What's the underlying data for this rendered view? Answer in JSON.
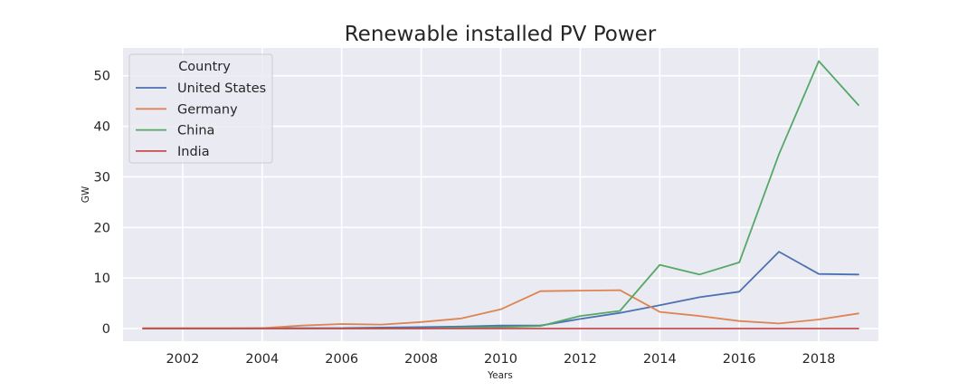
{
  "chart_data": {
    "type": "line",
    "title": "Renewable installed PV Power",
    "xlabel": "Years",
    "ylabel": "GW",
    "xlim": [
      2000.5,
      2019.5
    ],
    "ylim": [
      -2.5,
      55.5
    ],
    "xticks": [
      2002,
      2004,
      2006,
      2008,
      2010,
      2012,
      2014,
      2016,
      2018
    ],
    "yticks": [
      0,
      10,
      20,
      30,
      40,
      50
    ],
    "grid": true,
    "legend": {
      "title": "Country",
      "placement": "top-left"
    },
    "x": [
      2001,
      2002,
      2003,
      2004,
      2005,
      2006,
      2007,
      2008,
      2009,
      2010,
      2011,
      2012,
      2013,
      2014,
      2015,
      2016,
      2017,
      2018,
      2019
    ],
    "series": [
      {
        "name": "United States",
        "color": "#4c72b0",
        "values": [
          0.0,
          0.0,
          0.0,
          0.1,
          0.1,
          0.1,
          0.2,
          0.3,
          0.4,
          0.6,
          0.6,
          1.9,
          3.1,
          4.6,
          6.2,
          7.3,
          15.2,
          10.8,
          10.7
        ]
      },
      {
        "name": "Germany",
        "color": "#dd8452",
        "values": [
          0.1,
          0.1,
          0.1,
          0.1,
          0.6,
          0.9,
          0.8,
          1.3,
          2.0,
          3.8,
          7.4,
          7.5,
          7.6,
          3.3,
          2.5,
          1.5,
          1.0,
          1.8,
          3.0
        ]
      },
      {
        "name": "China",
        "color": "#55a868",
        "values": [
          0.0,
          0.0,
          0.0,
          0.0,
          0.0,
          0.0,
          0.0,
          0.0,
          0.2,
          0.3,
          0.5,
          2.5,
          3.5,
          12.6,
          10.7,
          13.1,
          34.5,
          52.9,
          44.2
        ]
      },
      {
        "name": "India",
        "color": "#c44e52",
        "values": [
          0.0,
          0.0,
          0.0,
          0.0,
          0.0,
          0.0,
          0.0,
          0.0,
          0.0,
          0.0,
          0.0,
          0.0,
          0.0,
          0.0,
          0.0,
          0.0,
          0.0,
          0.0,
          0.0
        ]
      }
    ]
  }
}
